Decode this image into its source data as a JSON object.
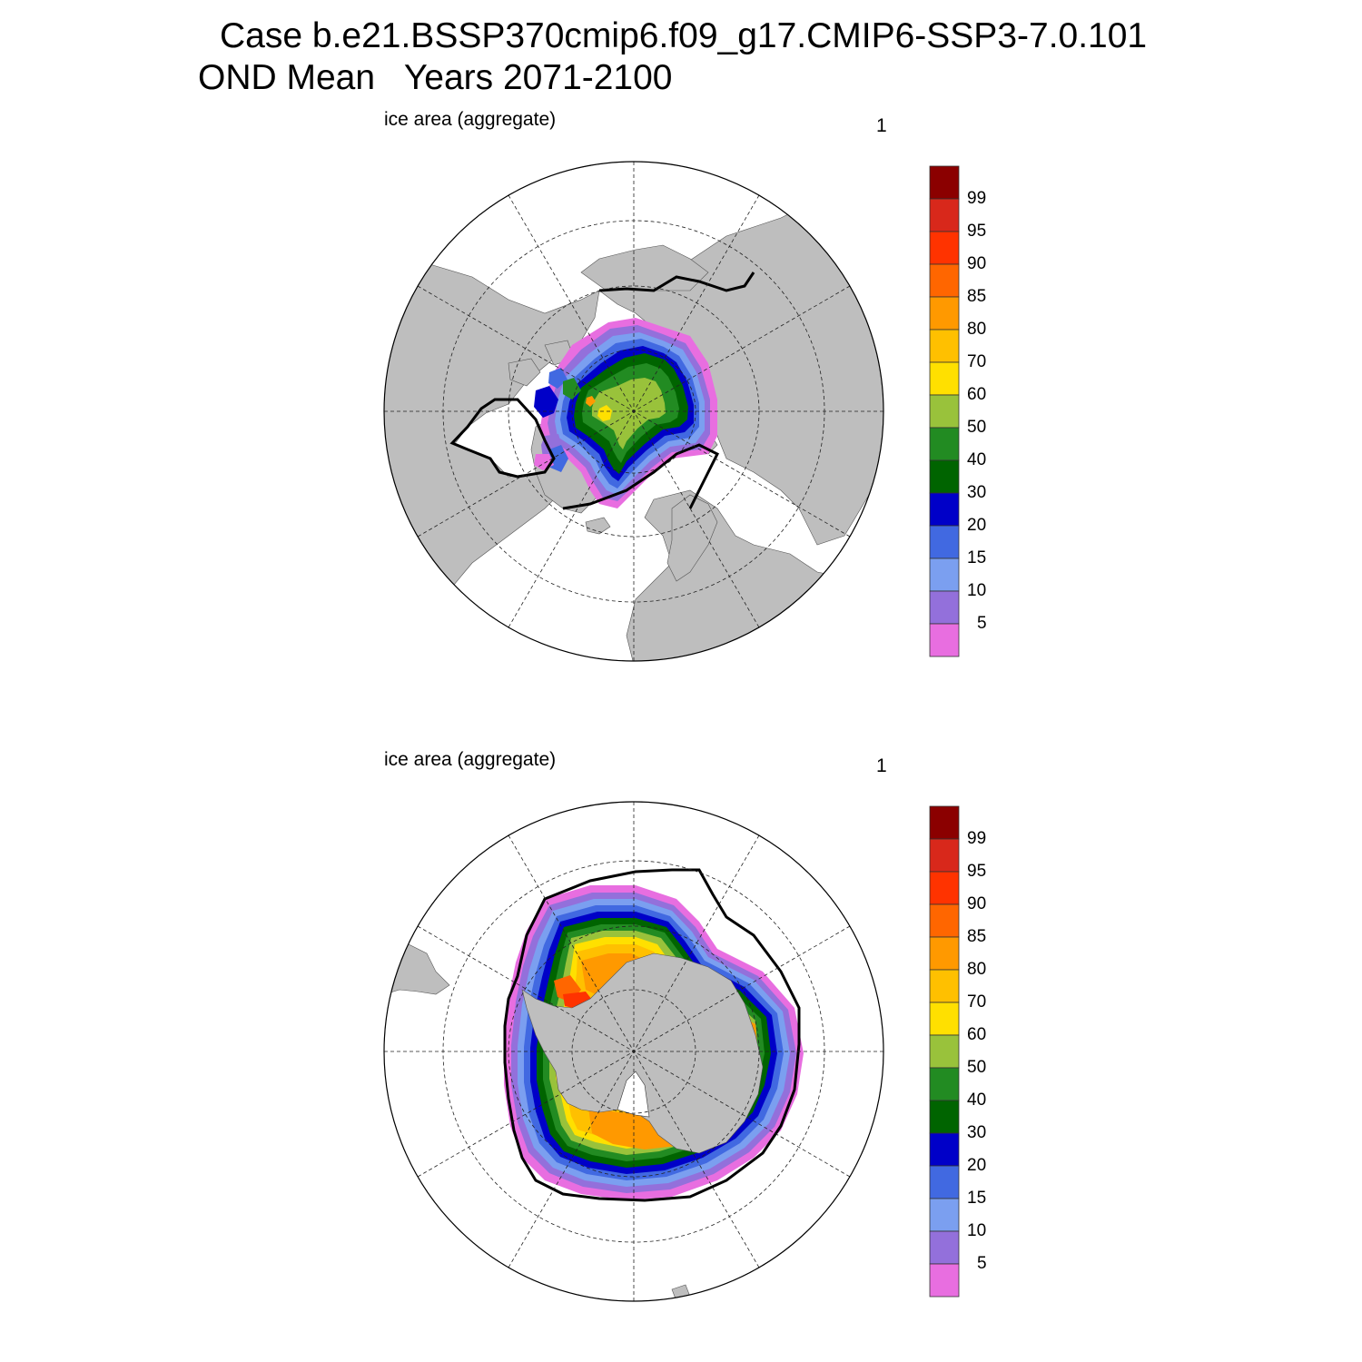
{
  "figure": {
    "title_line1": "Case b.e21.BSSP370cmip6.f09_g17.CMIP6-SSP3-7.0.101",
    "title_line2": "OND Mean   Years 2071-2100"
  },
  "panels": [
    {
      "id": "nh",
      "left_label": "ice area  (aggregate)",
      "right_label": "1",
      "hemisphere": "north"
    },
    {
      "id": "sh",
      "left_label": "ice area  (aggregate)",
      "right_label": "1",
      "hemisphere": "south"
    }
  ],
  "colorbar": {
    "labels": [
      "99",
      "95",
      "90",
      "85",
      "80",
      "70",
      "60",
      "50",
      "40",
      "30",
      "20",
      "15",
      "10",
      "5"
    ],
    "colors_top_to_bottom": [
      "#8b0000",
      "#d8281b",
      "#ff3300",
      "#ff6600",
      "#ff9900",
      "#ffc000",
      "#ffe000",
      "#99c23b",
      "#228b22",
      "#006400",
      "#0000c8",
      "#4169e1",
      "#7b9ff0",
      "#9370db",
      "#e86ee0"
    ]
  },
  "colors": {
    "land": "#bebebe",
    "ocean": "#ffffff",
    "observed_edge": "#000000"
  }
}
